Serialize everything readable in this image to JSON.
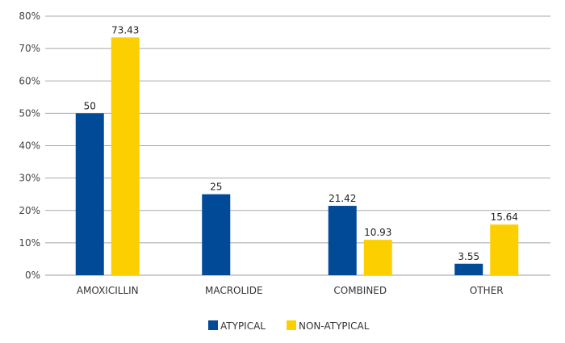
{
  "chart_data": {
    "type": "bar",
    "title": "",
    "xlabel": "",
    "ylabel": "",
    "ylim": [
      0,
      80
    ],
    "yticks": [
      "0%",
      "10%",
      "20%",
      "30%",
      "40%",
      "50%",
      "60%",
      "70%",
      "80%"
    ],
    "grid": true,
    "legend_position": "bottom",
    "categories": [
      "AMOXICILLIN",
      "MACROLIDE",
      "COMBINED",
      "OTHER"
    ],
    "series": [
      {
        "name": "ATYPICAL",
        "color": "#004a97",
        "values": [
          50,
          25,
          21.42,
          3.55
        ],
        "labels": [
          "50",
          "25",
          "21.42",
          "3.55"
        ]
      },
      {
        "name": "NON-ATYPICAL",
        "color": "#fcd000",
        "values": [
          73.43,
          null,
          10.93,
          15.64
        ],
        "labels": [
          "73.43",
          "",
          "10.93",
          "15.64"
        ]
      }
    ]
  }
}
